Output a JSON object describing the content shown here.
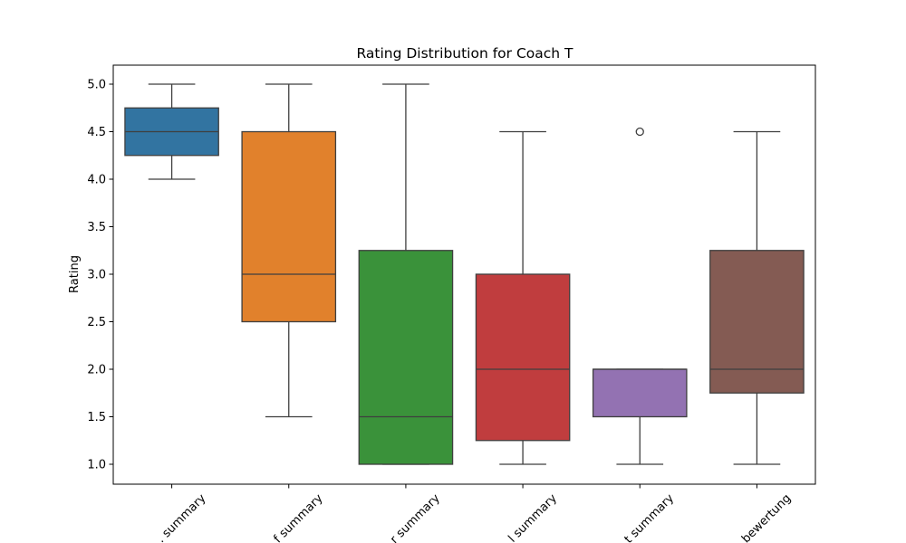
{
  "chart_data": {
    "type": "box",
    "title": "Rating Distribution for Coach T",
    "xlabel": "",
    "ylabel": "Rating",
    "ylim": [
      0.8,
      5.2
    ],
    "yticks": [
      1.0,
      1.5,
      2.0,
      2.5,
      3.0,
      3.5,
      4.0,
      4.5,
      5.0
    ],
    "ytick_labels": [
      "1.0",
      "1.5",
      "2.0",
      "2.5",
      "3.0",
      "3.5",
      "4.0",
      "4.5",
      "5.0"
    ],
    "grid": false,
    "categories": [
      ". summary",
      "f summary",
      "r summary",
      "l summary",
      "t summary",
      "bewertung"
    ],
    "boxes": [
      {
        "category": ". summary",
        "whislo": 4.0,
        "q1": 4.25,
        "median": 4.5,
        "q3": 4.75,
        "whishi": 5.0,
        "fliers": [],
        "color": "#3274a1"
      },
      {
        "category": "f summary",
        "whislo": 1.5,
        "q1": 2.5,
        "median": 3.0,
        "q3": 4.5,
        "whishi": 5.0,
        "fliers": [],
        "color": "#e1812c"
      },
      {
        "category": "r summary",
        "whislo": 1.0,
        "q1": 1.0,
        "median": 1.5,
        "q3": 3.25,
        "whishi": 5.0,
        "fliers": [],
        "color": "#3a923a"
      },
      {
        "category": "l summary",
        "whislo": 1.0,
        "q1": 1.25,
        "median": 2.0,
        "q3": 3.0,
        "whishi": 4.5,
        "fliers": [],
        "color": "#c03d3e"
      },
      {
        "category": "t summary",
        "whislo": 1.0,
        "q1": 1.5,
        "median": 2.0,
        "q3": 2.0,
        "whishi": 2.0,
        "fliers": [
          4.5
        ],
        "color": "#9372b2"
      },
      {
        "category": "bewertung",
        "whislo": 1.0,
        "q1": 1.75,
        "median": 2.0,
        "q3": 3.25,
        "whishi": 4.5,
        "fliers": [],
        "color": "#845b53"
      }
    ]
  }
}
